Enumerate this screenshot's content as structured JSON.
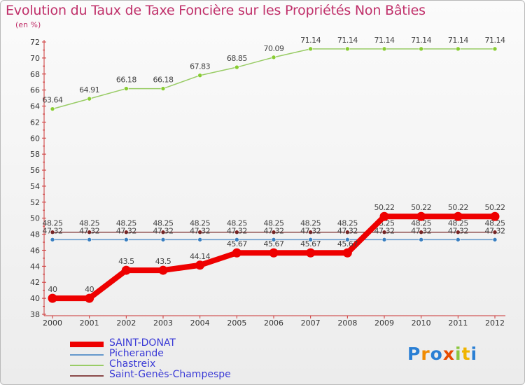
{
  "chart_data": {
    "type": "line",
    "title": "Evolution du Taux de Taxe Foncière sur les Propriétés Non Bâties",
    "ylabel": "(en %)",
    "xlabel": "",
    "categories": [
      "2000",
      "2001",
      "2002",
      "2003",
      "2004",
      "2005",
      "2006",
      "2007",
      "2008",
      "2009",
      "2010",
      "2011",
      "2012"
    ],
    "ylim": [
      38,
      72
    ],
    "yticks": [
      38,
      40,
      42,
      44,
      46,
      48,
      50,
      52,
      54,
      56,
      58,
      60,
      62,
      64,
      66,
      68,
      70,
      72
    ],
    "series": [
      {
        "name": "Chastreix",
        "color": "#99cc66",
        "marker": "#88cc33",
        "width": 1.5,
        "values": [
          63.64,
          64.91,
          66.18,
          66.18,
          67.83,
          68.85,
          70.09,
          71.14,
          71.14,
          71.14,
          71.14,
          71.14,
          71.14
        ],
        "labels": [
          "63.64",
          "64.91",
          "66.18",
          "66.18",
          "67.83",
          "68.85",
          "70.09",
          "71.14",
          "71.14",
          "71.14",
          "71.14",
          "71.14",
          "71.14"
        ]
      },
      {
        "name": "Saint-Genès-Champespe",
        "color": "#8b4a4a",
        "marker": "#7a2020",
        "width": 1.5,
        "values": [
          48.25,
          48.25,
          48.25,
          48.25,
          48.25,
          48.25,
          48.25,
          48.25,
          48.25,
          48.25,
          48.25,
          48.25,
          48.25
        ],
        "labels": [
          "48.25",
          "48.25",
          "48.25",
          "48.25",
          "48.25",
          "48.25",
          "48.25",
          "48.25",
          "48.25",
          "48.25",
          "48.25",
          "48.25",
          "48.25"
        ]
      },
      {
        "name": "Picherande",
        "color": "#6699cc",
        "marker": "#3a7fc0",
        "width": 1.5,
        "values": [
          47.32,
          47.32,
          47.32,
          47.32,
          47.32,
          47.32,
          47.32,
          47.32,
          47.32,
          47.32,
          47.32,
          47.32,
          47.32
        ],
        "labels": [
          "47.32",
          "47.32",
          "47.32",
          "47.32",
          "47.32",
          "47.32",
          "47.32",
          "47.32",
          "47.32",
          "47.32",
          "47.32",
          "47.32",
          "47.32"
        ]
      },
      {
        "name": "SAINT-DONAT",
        "color": "#ee0000",
        "marker": "#ee0000",
        "width": 8,
        "values": [
          40,
          40,
          43.5,
          43.5,
          44.14,
          45.67,
          45.67,
          45.67,
          45.67,
          50.22,
          50.22,
          50.22,
          50.22
        ],
        "labels": [
          "40",
          "40",
          "43.5",
          "43.5",
          "44.14",
          "45.67",
          "45.67",
          "45.67",
          "45.67",
          "50.22",
          "50.22",
          "50.22",
          "50.22"
        ]
      }
    ],
    "legend": [
      {
        "name": "SAINT-DONAT",
        "color": "#ee0000",
        "thickness": 8
      },
      {
        "name": "Picherande",
        "color": "#6699cc",
        "thickness": 2
      },
      {
        "name": "Chastreix",
        "color": "#99cc66",
        "thickness": 2
      },
      {
        "name": "Saint-Genès-Champespe",
        "color": "#8b4a4a",
        "thickness": 2
      }
    ],
    "legend_position": "bottom-left",
    "grid": false
  },
  "logo": {
    "letters": [
      "P",
      "r",
      "o",
      "x",
      "i",
      "t",
      "i"
    ],
    "colors": [
      "#2a7fd4",
      "#f08a00",
      "#2a7fd4",
      "#e84b00",
      "#8cc63f",
      "#f0b400",
      "#2a7fd4"
    ]
  }
}
